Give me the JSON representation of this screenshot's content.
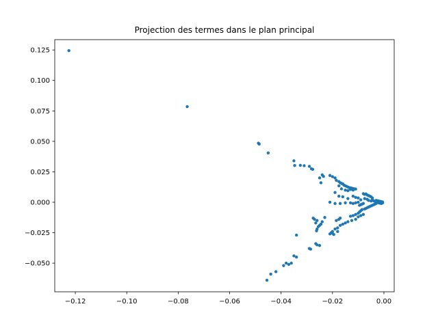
{
  "chart_data": {
    "type": "scatter",
    "title": "Projection des termes dans le plan principal",
    "xlabel": "",
    "ylabel": "",
    "xlim": [
      -0.128,
      0.004
    ],
    "ylim": [
      -0.0735,
      0.1335
    ],
    "grid": false,
    "marker_color": "#1f77b4",
    "x_ticks": [
      {
        "value": -0.12,
        "label": "−0.12"
      },
      {
        "value": -0.1,
        "label": "−0.10"
      },
      {
        "value": -0.08,
        "label": "−0.08"
      },
      {
        "value": -0.06,
        "label": "−0.06"
      },
      {
        "value": -0.04,
        "label": "−0.04"
      },
      {
        "value": -0.02,
        "label": "−0.02"
      },
      {
        "value": 0.0,
        "label": "0.00"
      }
    ],
    "y_ticks": [
      {
        "value": -0.05,
        "label": "−0.050"
      },
      {
        "value": -0.025,
        "label": "−0.025"
      },
      {
        "value": 0.0,
        "label": "0.000"
      },
      {
        "value": 0.025,
        "label": "0.025"
      },
      {
        "value": 0.05,
        "label": "0.050"
      },
      {
        "value": 0.075,
        "label": "0.075"
      },
      {
        "value": 0.1,
        "label": "0.100"
      },
      {
        "value": 0.125,
        "label": "0.125"
      }
    ],
    "points": [
      [
        -0.1225,
        0.1245
      ],
      [
        -0.0765,
        0.0785
      ],
      [
        -0.0488,
        0.0485
      ],
      [
        -0.0485,
        0.0478
      ],
      [
        -0.045,
        0.0405
      ],
      [
        -0.035,
        0.034
      ],
      [
        -0.0347,
        0.0302
      ],
      [
        -0.0325,
        0.0303
      ],
      [
        -0.031,
        0.03
      ],
      [
        -0.029,
        0.0295
      ],
      [
        -0.0282,
        0.0275
      ],
      [
        -0.0277,
        0.027
      ],
      [
        -0.024,
        0.0225
      ],
      [
        -0.0235,
        0.0212
      ],
      [
        -0.025,
        0.02
      ],
      [
        -0.0245,
        0.016
      ],
      [
        -0.021,
        0.022
      ],
      [
        -0.02,
        0.021
      ],
      [
        -0.019,
        0.02
      ],
      [
        -0.0185,
        0.018
      ],
      [
        -0.0175,
        0.017
      ],
      [
        -0.017,
        0.016
      ],
      [
        -0.0165,
        0.0155
      ],
      [
        -0.016,
        0.015
      ],
      [
        -0.0155,
        0.014
      ],
      [
        -0.015,
        0.0135
      ],
      [
        -0.0145,
        0.013
      ],
      [
        -0.014,
        0.0125
      ],
      [
        -0.0135,
        0.012
      ],
      [
        -0.013,
        0.0118
      ],
      [
        -0.0125,
        0.0115
      ],
      [
        -0.012,
        0.0112
      ],
      [
        -0.0115,
        0.011
      ],
      [
        -0.011,
        0.0108
      ],
      [
        -0.013,
        0.0105
      ],
      [
        -0.012,
        0.01
      ],
      [
        -0.0175,
        0.0135
      ],
      [
        -0.0165,
        0.011
      ],
      [
        -0.015,
        0.01
      ],
      [
        -0.014,
        0.0095
      ],
      [
        -0.019,
        0.008
      ],
      [
        -0.0175,
        0.005
      ],
      [
        -0.016,
        0.0045
      ],
      [
        -0.014,
        0.003
      ],
      [
        -0.012,
        0.005
      ],
      [
        -0.011,
        0.004
      ],
      [
        -0.01,
        0.0035
      ],
      [
        -0.009,
        0.002
      ],
      [
        -0.008,
        0.007
      ],
      [
        -0.0075,
        0.0065
      ],
      [
        -0.007,
        0.0068
      ],
      [
        -0.0065,
        0.006
      ],
      [
        -0.006,
        0.0055
      ],
      [
        -0.0055,
        0.005
      ],
      [
        -0.005,
        0.0045
      ],
      [
        -0.0045,
        0.0035
      ],
      [
        -0.0075,
        0.003
      ],
      [
        -0.0065,
        0.0025
      ],
      [
        -0.006,
        0.0015
      ],
      [
        -0.005,
        0.001
      ],
      [
        -0.0045,
        0.002
      ],
      [
        -0.004,
        0.0012
      ],
      [
        -0.0035,
        0.0008
      ],
      [
        -0.003,
        0.0005
      ],
      [
        -0.0025,
        0.0003
      ],
      [
        -0.002,
        0.0002
      ],
      [
        -0.0015,
        0.0001
      ],
      [
        -0.001,
        0.0
      ],
      [
        -0.003,
        0.0015
      ],
      [
        -0.0025,
        0.0012
      ],
      [
        -0.002,
        0.001
      ],
      [
        -0.0015,
        0.0008
      ],
      [
        -0.001,
        0.0005
      ],
      [
        -0.0005,
        0.0002
      ],
      [
        -0.002,
        -0.0005
      ],
      [
        -0.0015,
        -0.0008
      ],
      [
        -0.001,
        -0.001
      ],
      [
        -0.0005,
        -0.0005
      ],
      [
        -0.003,
        -0.001
      ],
      [
        -0.0035,
        -0.0015
      ],
      [
        -0.004,
        -0.002
      ],
      [
        -0.0045,
        -0.0025
      ],
      [
        -0.005,
        -0.003
      ],
      [
        -0.0055,
        -0.0035
      ],
      [
        -0.006,
        -0.004
      ],
      [
        -0.0065,
        -0.0045
      ],
      [
        -0.007,
        -0.005
      ],
      [
        -0.0075,
        -0.0055
      ],
      [
        -0.008,
        -0.001
      ],
      [
        -0.0085,
        -0.0015
      ],
      [
        -0.009,
        -0.002
      ],
      [
        -0.0095,
        -0.0025
      ],
      [
        -0.01,
        0.0
      ],
      [
        -0.011,
        -0.0005
      ],
      [
        -0.012,
        -0.001
      ],
      [
        -0.013,
        -0.0005
      ],
      [
        -0.015,
        -0.0005
      ],
      [
        -0.017,
        -0.001
      ],
      [
        -0.019,
        -0.001
      ],
      [
        -0.021,
        0.0
      ],
      [
        -0.0085,
        -0.006
      ],
      [
        -0.009,
        -0.007
      ],
      [
        -0.0095,
        -0.008
      ],
      [
        -0.01,
        -0.009
      ],
      [
        -0.011,
        -0.01
      ],
      [
        -0.012,
        -0.011
      ],
      [
        -0.013,
        -0.0115
      ],
      [
        -0.008,
        -0.01
      ],
      [
        -0.009,
        -0.011
      ],
      [
        -0.01,
        -0.012
      ],
      [
        -0.011,
        -0.014
      ],
      [
        -0.0125,
        -0.015
      ],
      [
        -0.014,
        -0.016
      ],
      [
        -0.015,
        -0.017
      ],
      [
        -0.016,
        -0.018
      ],
      [
        -0.017,
        -0.019
      ],
      [
        -0.018,
        -0.021
      ],
      [
        -0.019,
        -0.022
      ],
      [
        -0.02,
        -0.024
      ],
      [
        -0.0205,
        -0.025
      ],
      [
        -0.021,
        -0.026
      ],
      [
        -0.02,
        -0.0255
      ],
      [
        -0.0195,
        -0.0265
      ],
      [
        -0.018,
        -0.024
      ],
      [
        -0.017,
        -0.013
      ],
      [
        -0.0175,
        -0.014
      ],
      [
        -0.0185,
        -0.015
      ],
      [
        -0.023,
        -0.0125
      ],
      [
        -0.024,
        -0.016
      ],
      [
        -0.0245,
        -0.018
      ],
      [
        -0.025,
        -0.019
      ],
      [
        -0.0275,
        -0.013
      ],
      [
        -0.027,
        -0.014
      ],
      [
        -0.026,
        -0.015
      ],
      [
        -0.0265,
        -0.017
      ],
      [
        -0.0255,
        -0.02
      ],
      [
        -0.026,
        -0.022
      ],
      [
        -0.0262,
        -0.0235
      ],
      [
        -0.0265,
        -0.034
      ],
      [
        -0.026,
        -0.035
      ],
      [
        -0.025,
        -0.0355
      ],
      [
        -0.029,
        -0.038
      ],
      [
        -0.0285,
        -0.0385
      ],
      [
        -0.034,
        -0.027
      ],
      [
        -0.035,
        -0.044
      ],
      [
        -0.034,
        -0.045
      ],
      [
        -0.036,
        -0.05
      ],
      [
        -0.037,
        -0.051
      ],
      [
        -0.038,
        -0.05
      ],
      [
        -0.039,
        -0.052
      ],
      [
        -0.042,
        -0.057
      ],
      [
        -0.044,
        -0.059
      ],
      [
        -0.0455,
        -0.064
      ]
    ]
  }
}
